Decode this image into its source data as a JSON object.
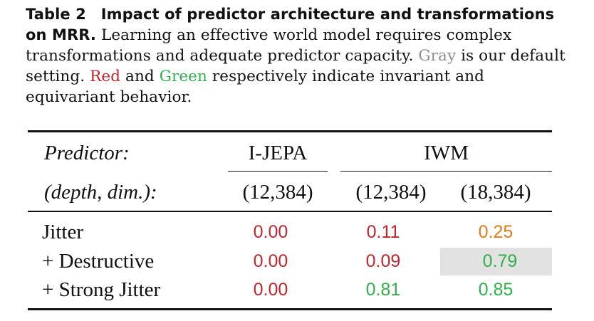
{
  "caption": {
    "label": "Table 2",
    "title": "Impact of predictor architecture and transformations on MRR.",
    "text_1": "Learning an effective world model requires complex transformations and adequate predictor capacity.",
    "gray_word": "Gray",
    "text_2": "is our default setting.",
    "red_word": "Red",
    "text_3": "and",
    "green_word": "Green",
    "text_4": "respectively indicate invariant and equivariant behavior."
  },
  "header": {
    "predictor_label": "Predictor:",
    "depth_label": "(depth, dim.):",
    "group_ijepa": "I-JEPA",
    "group_iwm": "IWM",
    "col1_config": "(12,384)",
    "col2_config": "(12,384)",
    "col3_config": "(18,384)"
  },
  "rows": [
    {
      "label": "Jitter",
      "values": [
        "0.00",
        "0.11",
        "0.25"
      ],
      "colors": [
        "red",
        "red",
        "orange"
      ]
    },
    {
      "label": "+ Destructive",
      "values": [
        "0.00",
        "0.09",
        "0.79"
      ],
      "colors": [
        "red",
        "red",
        "green"
      ],
      "highlighted_cell": 2
    },
    {
      "label": "+ Strong Jitter",
      "values": [
        "0.00",
        "0.81",
        "0.85"
      ],
      "colors": [
        "red",
        "green",
        "green"
      ]
    }
  ],
  "colors": {
    "red": "#c0262d",
    "green": "#2fb04a",
    "orange": "#e07b1a",
    "gray": "#8f8f8f",
    "highlight": "#e2e2e2"
  }
}
